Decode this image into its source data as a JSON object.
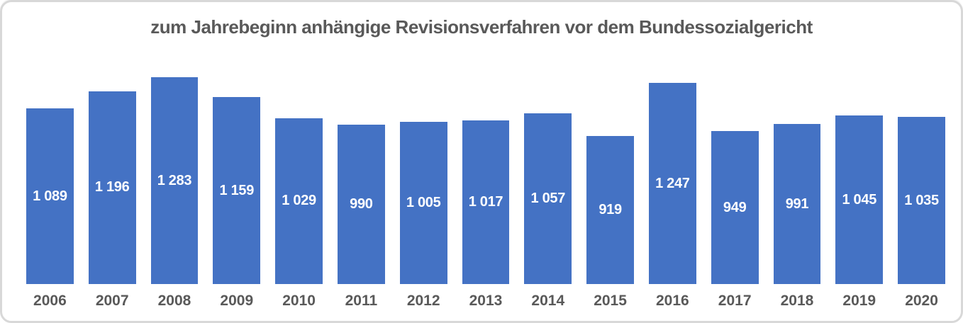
{
  "chart_data": {
    "type": "bar",
    "title": "zum Jahrebeginn anhängige Revisionsverfahren vor dem Bundessozialgericht",
    "categories": [
      "2006",
      "2007",
      "2008",
      "2009",
      "2010",
      "2011",
      "2012",
      "2013",
      "2014",
      "2015",
      "2016",
      "2017",
      "2018",
      "2019",
      "2020"
    ],
    "values": [
      1089,
      1196,
      1283,
      1159,
      1029,
      990,
      1005,
      1017,
      1057,
      919,
      1247,
      949,
      991,
      1045,
      1035
    ],
    "value_labels": [
      "1 089",
      "1 196",
      "1 283",
      "1 159",
      "1 029",
      "990",
      "1 005",
      "1 017",
      "1 057",
      "919",
      "1 247",
      "949",
      "991",
      "1 045",
      "1 035"
    ],
    "xlabel": "",
    "ylabel": "",
    "ylim": [
      0,
      1283
    ],
    "grid": false,
    "legend": "none",
    "data_label_position": "center-inside",
    "bar_color": "#4472c4",
    "data_label_color": "#ffffff",
    "title_color": "#595959",
    "axis_label_color": "#595959",
    "card_border_color": "#d8d8d8"
  }
}
